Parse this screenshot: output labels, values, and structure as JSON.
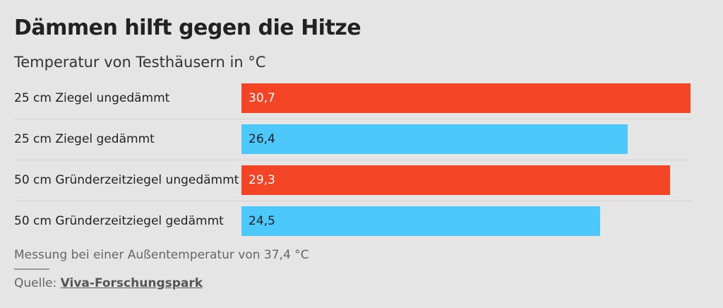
{
  "header": {
    "title": "Dämmen hilft gegen die Hitze",
    "subtitle": "Temperatur von Testhäusern in °C"
  },
  "colors": {
    "ungedaemmt": "#f44426",
    "gedaemmt": "#4cc8fa",
    "background": "#e5e5e5"
  },
  "chart_data": {
    "type": "bar",
    "orientation": "horizontal",
    "categories": [
      "25 cm Ziegel ungedämmt",
      "25 cm Ziegel gedämmt",
      "50 cm Gründerzeitziegel ungedämmt",
      "50 cm Gründerzeitziegel gedämmt"
    ],
    "values": [
      30.7,
      26.4,
      29.3,
      24.5
    ],
    "value_labels": [
      "30,7",
      "26,4",
      "29,3",
      "24,5"
    ],
    "bar_colors": [
      "#f44426",
      "#4cc8fa",
      "#f44426",
      "#4cc8fa"
    ],
    "label_colors": [
      "#ffffff",
      "#222222",
      "#ffffff",
      "#222222"
    ],
    "xlim": [
      0,
      30.7
    ],
    "title": "Dämmen hilft gegen die Hitze",
    "subtitle": "Temperatur von Testhäusern in °C"
  },
  "footer": {
    "note": "Messung bei einer Außentemperatur von 37,4 °C",
    "source_prefix": "Quelle: ",
    "source_link": "Viva-Forschungspark"
  }
}
